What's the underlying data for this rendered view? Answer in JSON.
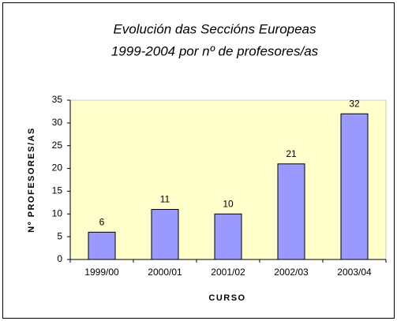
{
  "chart_data": {
    "type": "bar",
    "title": [
      "Evolución das Seccións Europeas",
      "1999-2004 por nº de profesores/as"
    ],
    "xlabel": "CURSO",
    "ylabel": "Nº PROFESORES/AS",
    "categories": [
      "1999/00",
      "2000/01",
      "2001/02",
      "2002/03",
      "2003/04"
    ],
    "values": [
      6,
      11,
      10,
      21,
      32
    ],
    "color": "#9999ff",
    "plot_background": "#ffffcc",
    "ylim": [
      0,
      35
    ],
    "yticks": [
      0,
      5,
      10,
      15,
      20,
      25,
      30,
      35
    ],
    "grid": false
  }
}
